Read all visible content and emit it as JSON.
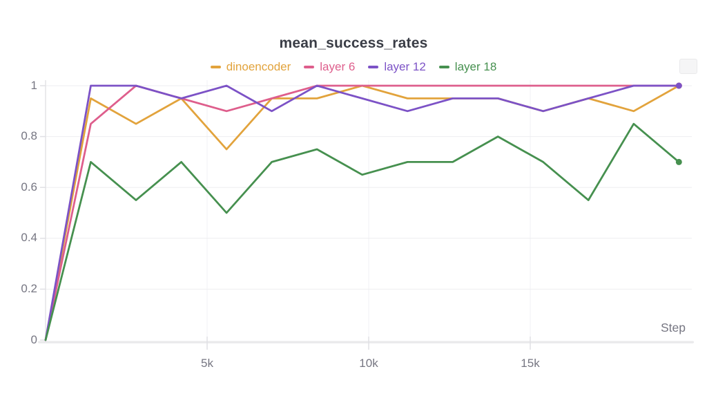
{
  "panel": {
    "title": "mean_success_rates",
    "corner_button": ""
  },
  "legend": {
    "items": [
      {
        "label": "dinoencoder",
        "color": "#E2A33C"
      },
      {
        "label": "layer 6",
        "color": "#DE5E8C"
      },
      {
        "label": "layer 12",
        "color": "#7C52C6"
      },
      {
        "label": "layer 18",
        "color": "#46904F"
      }
    ]
  },
  "axes": {
    "x_title": "Step",
    "x_tick_labels": [
      "5k",
      "10k",
      "15k"
    ],
    "y_tick_labels": [
      "1",
      "0.8",
      "0.6",
      "0.4",
      "0.2",
      "0"
    ]
  },
  "chart_data": {
    "type": "line",
    "title": "mean_success_rates",
    "xlabel": "Step",
    "ylabel": "",
    "xlim": [
      0,
      20000
    ],
    "ylim": [
      0,
      1
    ],
    "grid": true,
    "legend_position": "top",
    "x_tick_values": [
      5000,
      10000,
      15000
    ],
    "y_tick_values": [
      0,
      0.2,
      0.4,
      0.6,
      0.8,
      1
    ],
    "x": [
      0,
      1400,
      2800,
      4200,
      5600,
      7000,
      8400,
      9800,
      11200,
      12600,
      14000,
      15400,
      16800,
      18200,
      19600
    ],
    "series": [
      {
        "name": "dinoencoder",
        "color": "#E2A33C",
        "values": [
          0,
          0.95,
          0.85,
          0.95,
          0.75,
          0.95,
          0.95,
          1.0,
          0.95,
          0.95,
          0.95,
          0.9,
          0.95,
          0.9,
          1.0
        ]
      },
      {
        "name": "layer 6",
        "color": "#DE5E8C",
        "values": [
          0,
          0.85,
          1.0,
          0.95,
          0.9,
          0.95,
          1.0,
          1.0,
          1.0,
          1.0,
          1.0,
          1.0,
          1.0,
          1.0,
          1.0
        ]
      },
      {
        "name": "layer 12",
        "color": "#7C52C6",
        "values": [
          0,
          1.0,
          1.0,
          0.95,
          1.0,
          0.9,
          1.0,
          0.95,
          0.9,
          0.95,
          0.95,
          0.9,
          0.95,
          1.0,
          1.0
        ]
      },
      {
        "name": "layer 18",
        "color": "#46904F",
        "values": [
          0,
          0.7,
          0.55,
          0.7,
          0.5,
          0.7,
          0.75,
          0.65,
          0.7,
          0.7,
          0.8,
          0.7,
          0.55,
          0.85,
          0.7
        ]
      }
    ],
    "end_markers": true
  }
}
